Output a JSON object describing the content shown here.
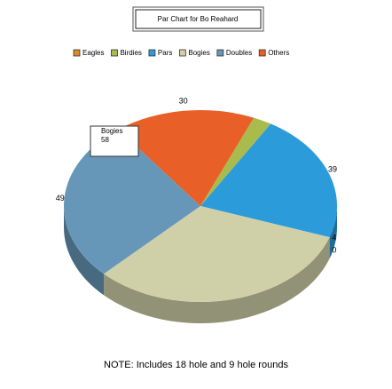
{
  "chart_data": {
    "type": "pie",
    "title": "Par Chart for Bo Reahard",
    "categories": [
      "Eagles",
      "Birdies",
      "Pars",
      "Bogies",
      "Doubles",
      "Others"
    ],
    "values": [
      0,
      4,
      39,
      58,
      49,
      30
    ],
    "colors": [
      "#d98a2b",
      "#a9bb4c",
      "#2b9bd9",
      "#d0d0a8",
      "#6797b8",
      "#e85f28"
    ],
    "note": "NOTE: Includes 18 hole and 9 hole rounds"
  }
}
